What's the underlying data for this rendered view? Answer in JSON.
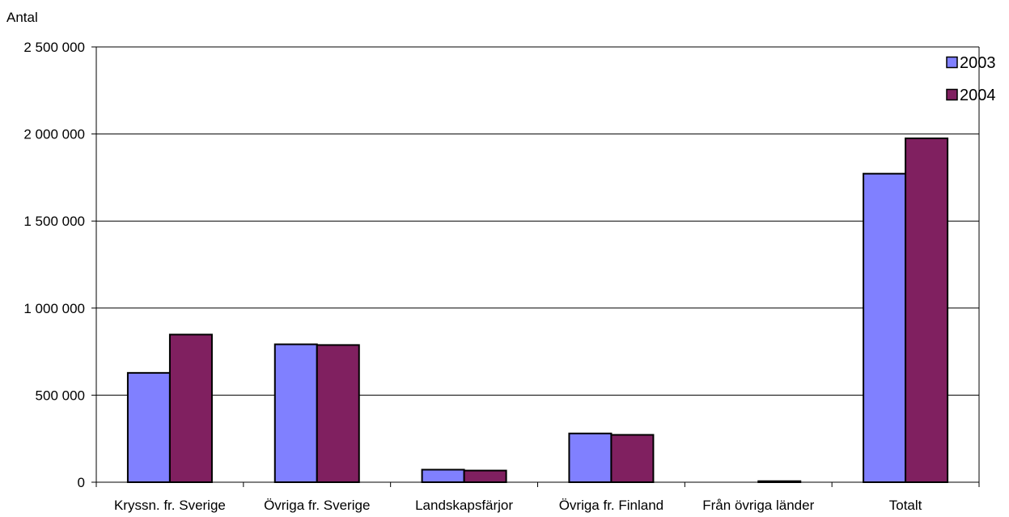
{
  "chart_data": {
    "type": "bar",
    "title": "",
    "xlabel": "",
    "ylabel": "Antal",
    "ylim": [
      0,
      2500000
    ],
    "yticks": [
      0,
      500000,
      1000000,
      1500000,
      2000000,
      2500000
    ],
    "ytick_labels": [
      "0",
      "500 000",
      "1 000 000",
      "1 500 000",
      "2 000 000",
      "2 500 000"
    ],
    "categories": [
      "Kryssn. fr. Sverige",
      "Övriga fr. Sverige",
      "Landskapsfärjor",
      "Övriga fr. Finland",
      "Från övriga länder",
      "Totalt"
    ],
    "series": [
      {
        "name": "2003",
        "color": "#8080ff",
        "values": [
          628000,
          792000,
          72000,
          280000,
          0,
          1772000
        ]
      },
      {
        "name": "2004",
        "color": "#802060",
        "values": [
          848000,
          788000,
          67000,
          272000,
          6000,
          1975000
        ]
      }
    ],
    "grid": true,
    "legend": "top-right"
  }
}
